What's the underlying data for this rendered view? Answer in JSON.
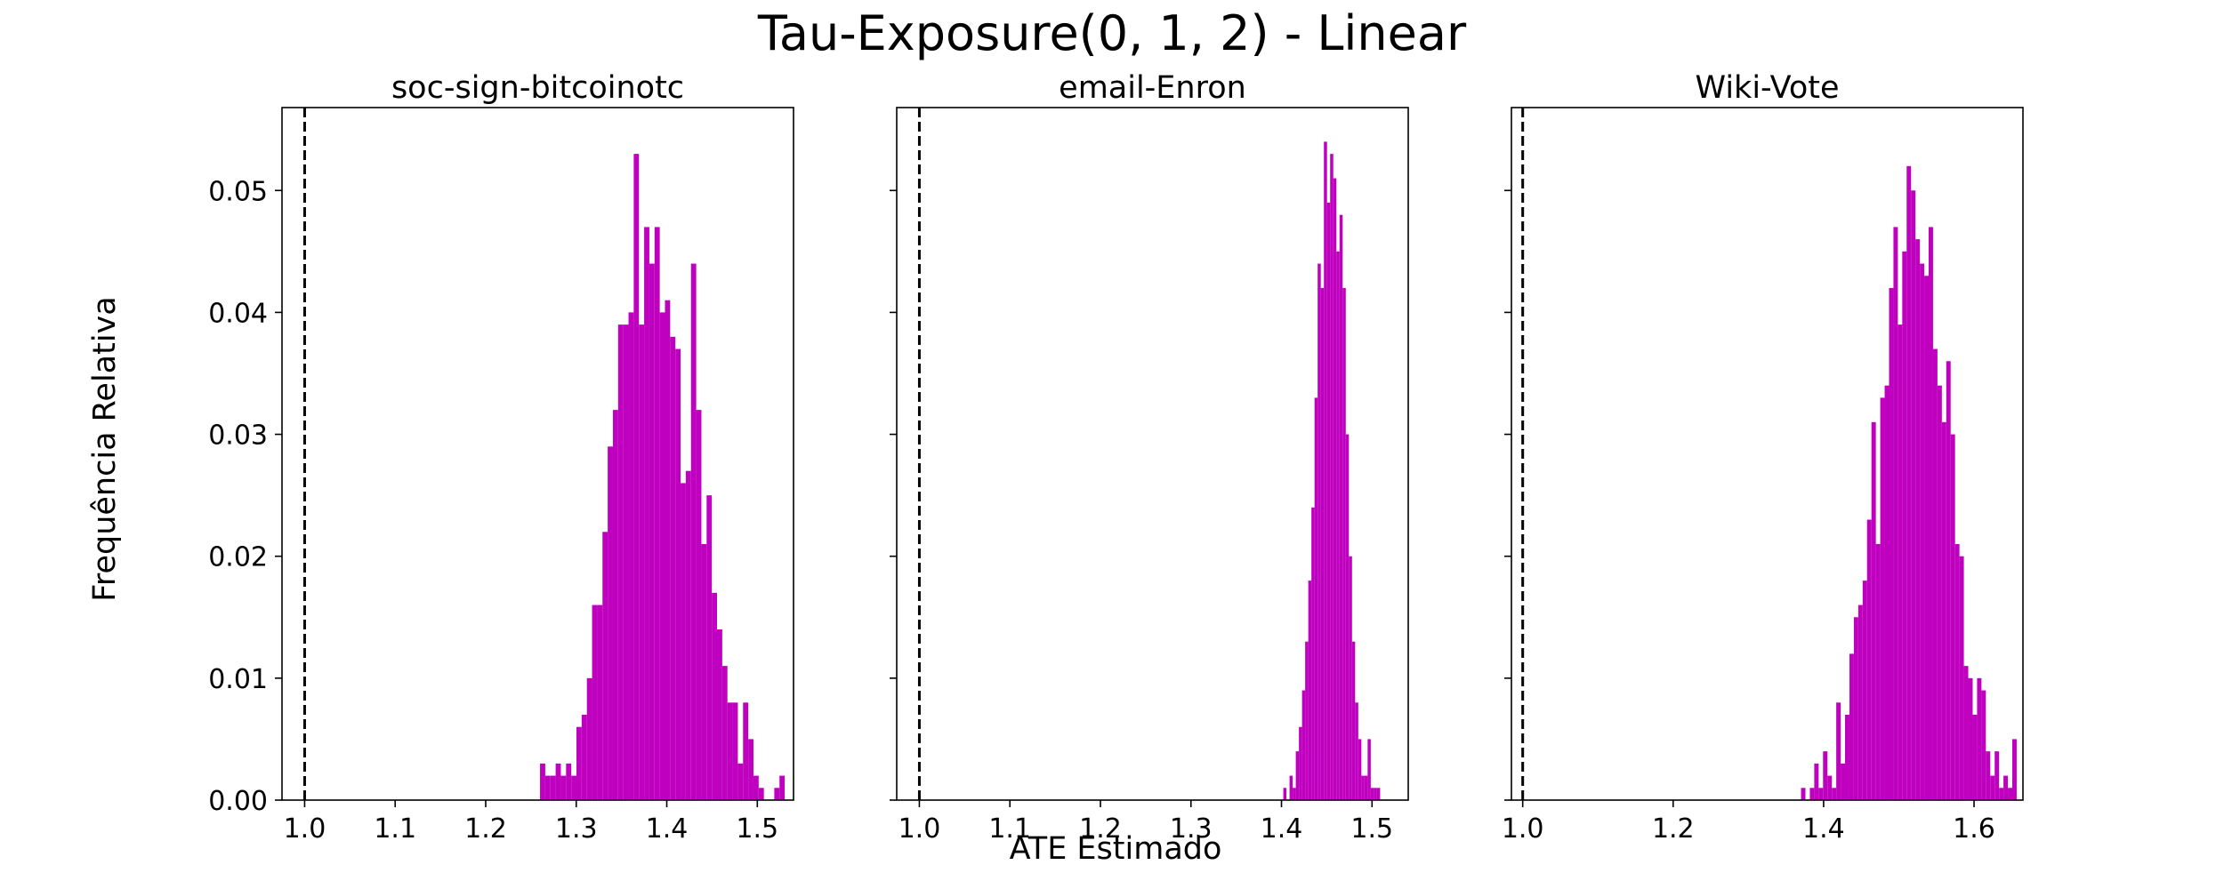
{
  "figure": {
    "suptitle": "Tau-Exposure(0, 1, 2) - Linear",
    "ylabel": "Frequência Relativa",
    "xlabel": "ATE Estimado",
    "bar_color": "#bf00bf",
    "line_color": "#000000"
  },
  "chart_data": [
    {
      "type": "bar",
      "title": "soc-sign-bitcoinotc",
      "xlim": [
        0.975,
        1.54
      ],
      "ylim": [
        0,
        0.0568
      ],
      "xticks": [
        1.0,
        1.1,
        1.2,
        1.3,
        1.4,
        1.5
      ],
      "xtick_labels": [
        "1.0",
        "1.1",
        "1.2",
        "1.3",
        "1.4",
        "1.5"
      ],
      "yticks": [
        0.0,
        0.01,
        0.02,
        0.03,
        0.04,
        0.05
      ],
      "ytick_labels": [
        "0.00",
        "0.01",
        "0.02",
        "0.03",
        "0.04",
        "0.05"
      ],
      "reference_line_x": 1.0,
      "bin_start": 1.26,
      "bin_width": 0.00575,
      "values": [
        0.003,
        0.002,
        0.002,
        0.003,
        0.002,
        0.003,
        0.002,
        0.006,
        0.007,
        0.01,
        0.016,
        0.016,
        0.022,
        0.029,
        0.032,
        0.039,
        0.039,
        0.04,
        0.053,
        0.039,
        0.047,
        0.044,
        0.047,
        0.04,
        0.041,
        0.038,
        0.037,
        0.026,
        0.027,
        0.044,
        0.032,
        0.021,
        0.025,
        0.017,
        0.014,
        0.011,
        0.008,
        0.008,
        0.003,
        0.008,
        0.005,
        0.002,
        0.001,
        0.0,
        0.0,
        0.001,
        0.002
      ]
    },
    {
      "type": "bar",
      "title": "email-Enron",
      "xlim": [
        0.975,
        1.54
      ],
      "ylim": [
        0,
        0.0568
      ],
      "xticks": [
        1.0,
        1.1,
        1.2,
        1.3,
        1.4,
        1.5
      ],
      "xtick_labels": [
        "1.0",
        "1.1",
        "1.2",
        "1.3",
        "1.4",
        "1.5"
      ],
      "yticks": [
        0.0,
        0.01,
        0.02,
        0.03,
        0.04,
        0.05
      ],
      "ytick_labels": [
        "",
        "",
        "",
        "",
        "",
        ""
      ],
      "reference_line_x": 1.0,
      "bin_start": 1.402,
      "bin_width": 0.00345,
      "values": [
        0.001,
        0.0,
        0.002,
        0.001,
        0.004,
        0.006,
        0.009,
        0.013,
        0.018,
        0.024,
        0.033,
        0.044,
        0.042,
        0.054,
        0.049,
        0.053,
        0.051,
        0.045,
        0.048,
        0.042,
        0.03,
        0.02,
        0.013,
        0.008,
        0.005,
        0.002,
        0.002,
        0.005,
        0.001,
        0.001,
        0.001
      ]
    },
    {
      "type": "bar",
      "title": "Wiki-Vote",
      "xlim": [
        0.985,
        1.665
      ],
      "ylim": [
        0,
        0.0568
      ],
      "xticks": [
        1.0,
        1.2,
        1.4,
        1.6
      ],
      "xtick_labels": [
        "1.0",
        "1.2",
        "1.4",
        "1.6"
      ],
      "yticks": [
        0.0,
        0.01,
        0.02,
        0.03,
        0.04,
        0.05
      ],
      "ytick_labels": [
        "",
        "",
        "",
        "",
        "",
        ""
      ],
      "reference_line_x": 1.0,
      "bin_start": 1.37,
      "bin_width": 0.00585,
      "values": [
        0.001,
        0.0,
        0.001,
        0.003,
        0.001,
        0.004,
        0.002,
        0.001,
        0.008,
        0.003,
        0.007,
        0.012,
        0.015,
        0.016,
        0.018,
        0.023,
        0.031,
        0.021,
        0.033,
        0.034,
        0.042,
        0.047,
        0.039,
        0.045,
        0.052,
        0.05,
        0.046,
        0.044,
        0.043,
        0.047,
        0.037,
        0.034,
        0.031,
        0.036,
        0.03,
        0.021,
        0.02,
        0.011,
        0.01,
        0.007,
        0.01,
        0.009,
        0.004,
        0.002,
        0.004,
        0.001,
        0.002,
        0.001,
        0.005
      ]
    }
  ]
}
